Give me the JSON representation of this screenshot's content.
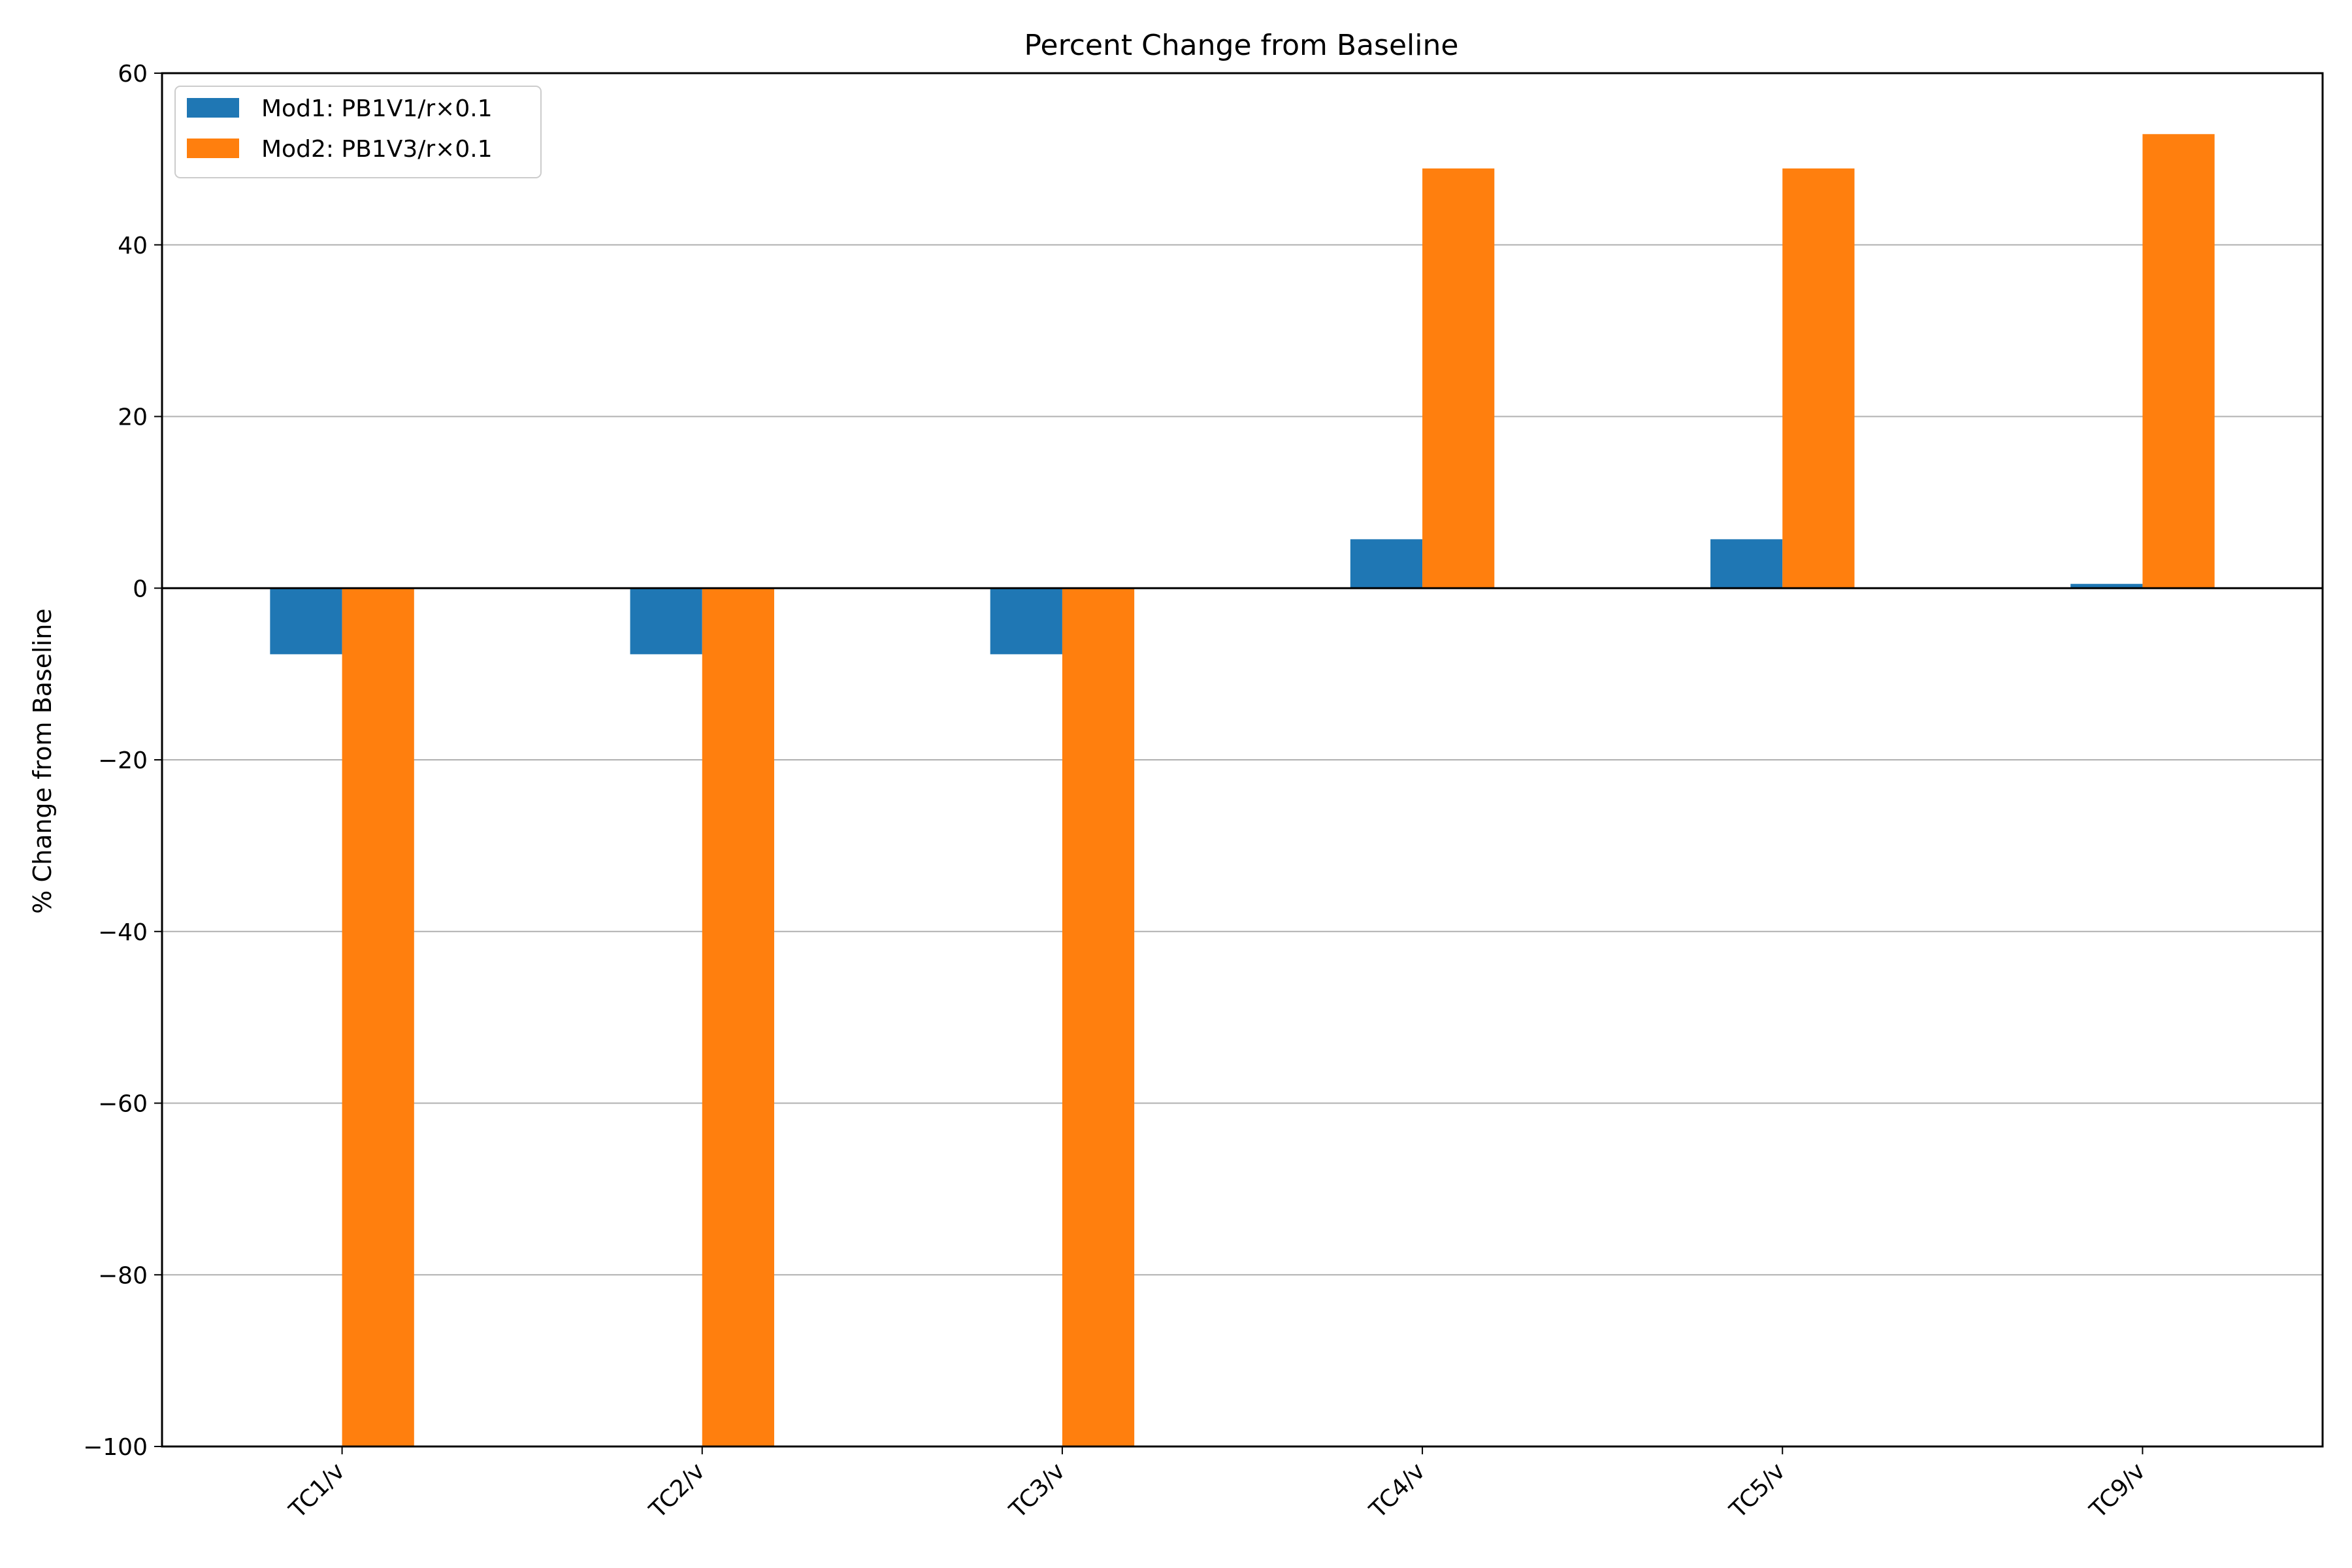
{
  "chart_data": {
    "type": "bar",
    "title": "Percent Change from Baseline",
    "xlabel": "",
    "ylabel": "% Change from Baseline",
    "categories": [
      "TC1/v",
      "TC2/v",
      "TC3/v",
      "TC4/v",
      "TC5/v",
      "TC9/v"
    ],
    "series": [
      {
        "name": "Mod1: PB1V1/r×0.1",
        "color": "#1f77b4",
        "values": [
          -7.7,
          -7.7,
          -7.7,
          5.7,
          5.7,
          0.5
        ]
      },
      {
        "name": "Mod2: PB1V3/r×0.1",
        "color": "#ff7f0e",
        "values": [
          -100,
          -100,
          -100,
          48.9,
          48.9,
          52.9
        ]
      }
    ],
    "ylim": [
      -100,
      60
    ],
    "yticks": [
      -100,
      -80,
      -60,
      -40,
      -20,
      0,
      20,
      40,
      60
    ],
    "ytick_labels": [
      "−100",
      "−80",
      "−60",
      "−40",
      "−20",
      "0",
      "20",
      "40",
      "60"
    ],
    "grid": "y",
    "legend_position": "top-left"
  }
}
